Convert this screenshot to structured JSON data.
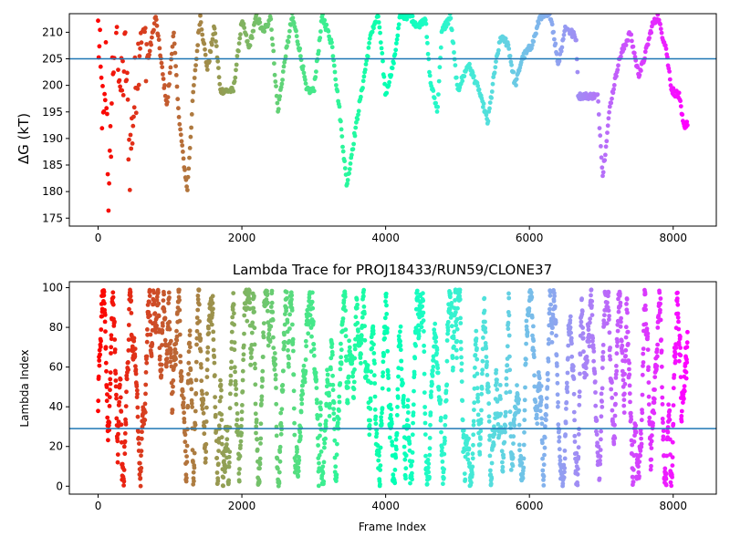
{
  "chart_data": [
    {
      "type": "scatter",
      "title": "",
      "xlabel": "",
      "ylabel": "ΔG (kT)",
      "xlim": [
        -400,
        8600
      ],
      "ylim": [
        173.5,
        213.5
      ],
      "xticks": [
        0,
        2000,
        4000,
        6000,
        8000
      ],
      "yticks": [
        175,
        180,
        185,
        190,
        195,
        200,
        205,
        210
      ],
      "hline": 205,
      "hline_color": "#1f77b4",
      "colormap": "rainbow (red at frame 0 to violet at last frame)",
      "grid": false,
      "legend": "none",
      "x_range": [
        0,
        8200
      ],
      "segments": [
        {
          "x": 0,
          "y": 210
        },
        {
          "x": 40,
          "y": 200
        },
        {
          "x": 80,
          "y": 190
        },
        {
          "x": 110,
          "y": 205
        },
        {
          "x": 150,
          "y": 176
        },
        {
          "x": 200,
          "y": 203
        },
        {
          "x": 260,
          "y": 212
        },
        {
          "x": 320,
          "y": 198
        },
        {
          "x": 380,
          "y": 206
        },
        {
          "x": 440,
          "y": 186
        },
        {
          "x": 520,
          "y": 200
        },
        {
          "x": 600,
          "y": 212
        },
        {
          "x": 700,
          "y": 205
        },
        {
          "x": 800,
          "y": 213
        },
        {
          "x": 880,
          "y": 204
        },
        {
          "x": 960,
          "y": 196
        },
        {
          "x": 1050,
          "y": 210
        },
        {
          "x": 1130,
          "y": 193
        },
        {
          "x": 1240,
          "y": 180
        },
        {
          "x": 1320,
          "y": 198
        },
        {
          "x": 1420,
          "y": 213
        },
        {
          "x": 1520,
          "y": 203
        },
        {
          "x": 1620,
          "y": 211
        },
        {
          "x": 1700,
          "y": 199
        },
        {
          "x": 1880,
          "y": 199
        },
        {
          "x": 2000,
          "y": 212
        },
        {
          "x": 2100,
          "y": 207
        },
        {
          "x": 2200,
          "y": 213
        },
        {
          "x": 2300,
          "y": 210
        },
        {
          "x": 2400,
          "y": 213
        },
        {
          "x": 2500,
          "y": 195
        },
        {
          "x": 2600,
          "y": 205
        },
        {
          "x": 2700,
          "y": 213
        },
        {
          "x": 2800,
          "y": 207
        },
        {
          "x": 2900,
          "y": 199
        },
        {
          "x": 3000,
          "y": 199
        },
        {
          "x": 3120,
          "y": 213
        },
        {
          "x": 3250,
          "y": 208
        },
        {
          "x": 3360,
          "y": 195
        },
        {
          "x": 3460,
          "y": 181
        },
        {
          "x": 3560,
          "y": 190
        },
        {
          "x": 3680,
          "y": 200
        },
        {
          "x": 3800,
          "y": 210
        },
        {
          "x": 3900,
          "y": 213
        },
        {
          "x": 4000,
          "y": 198
        },
        {
          "x": 4120,
          "y": 205
        },
        {
          "x": 4200,
          "y": 213
        },
        {
          "x": 4350,
          "y": 213
        },
        {
          "x": 4450,
          "y": 211
        },
        {
          "x": 4550,
          "y": 213
        },
        {
          "x": 4620,
          "y": 201
        },
        {
          "x": 4720,
          "y": 195
        },
        {
          "x": 4780,
          "y": 210
        },
        {
          "x": 4900,
          "y": 213
        },
        {
          "x": 5000,
          "y": 199
        },
        {
          "x": 5150,
          "y": 204
        },
        {
          "x": 5300,
          "y": 199
        },
        {
          "x": 5420,
          "y": 193
        },
        {
          "x": 5520,
          "y": 203
        },
        {
          "x": 5600,
          "y": 209
        },
        {
          "x": 5700,
          "y": 208
        },
        {
          "x": 5800,
          "y": 200
        },
        {
          "x": 5900,
          "y": 205
        },
        {
          "x": 6050,
          "y": 208
        },
        {
          "x": 6150,
          "y": 213
        },
        {
          "x": 6300,
          "y": 213
        },
        {
          "x": 6400,
          "y": 204
        },
        {
          "x": 6500,
          "y": 211
        },
        {
          "x": 6650,
          "y": 209
        },
        {
          "x": 6680,
          "y": 198
        },
        {
          "x": 6950,
          "y": 198
        },
        {
          "x": 7020,
          "y": 183
        },
        {
          "x": 7120,
          "y": 196
        },
        {
          "x": 7250,
          "y": 205
        },
        {
          "x": 7400,
          "y": 210
        },
        {
          "x": 7520,
          "y": 202
        },
        {
          "x": 7600,
          "y": 205
        },
        {
          "x": 7700,
          "y": 211
        },
        {
          "x": 7780,
          "y": 213
        },
        {
          "x": 7900,
          "y": 207
        },
        {
          "x": 7980,
          "y": 199
        },
        {
          "x": 8080,
          "y": 198
        },
        {
          "x": 8150,
          "y": 192
        },
        {
          "x": 8200,
          "y": 193
        }
      ]
    },
    {
      "type": "scatter",
      "title": "Lambda Trace for PROJ18433/RUN59/CLONE37",
      "xlabel": "Frame Index",
      "ylabel": "Lambda Index",
      "xlim": [
        -400,
        8600
      ],
      "ylim": [
        -4,
        103
      ],
      "xticks": [
        0,
        2000,
        4000,
        6000,
        8000
      ],
      "yticks": [
        0,
        20,
        40,
        60,
        80,
        100
      ],
      "hline": 29,
      "hline_color": "#1f77b4",
      "colormap": "rainbow (red at frame 0 to violet at last frame)",
      "grid": false,
      "legend": "none",
      "x_range": [
        0,
        8200
      ],
      "y_range": [
        0,
        99
      ]
    }
  ]
}
